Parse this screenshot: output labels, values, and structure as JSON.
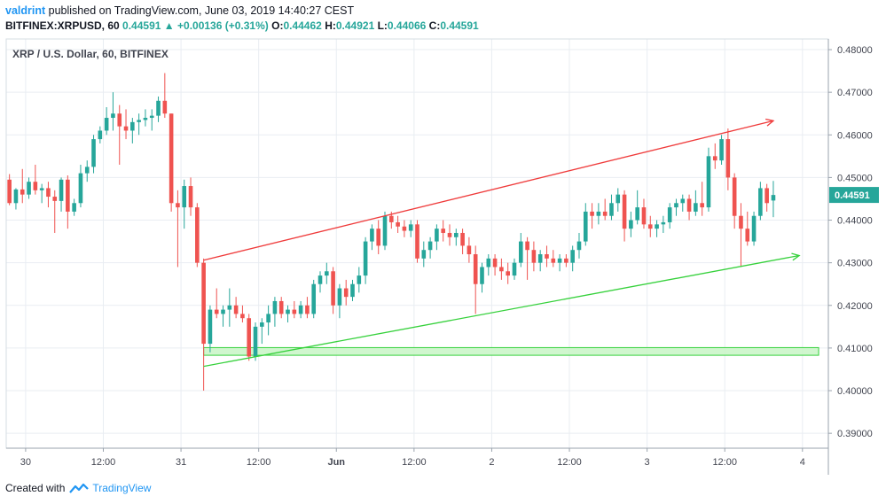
{
  "header": {
    "author": "valdrint",
    "published_text": "published on TradingView.com, June 03, 2019 14:40:27 CEST",
    "symbol_interval": "BITFINEX:XRPUSD, 60",
    "last": "0.44591",
    "change": "+0.00136 (+0.31%)",
    "o_label": "O:",
    "o": "0.44462",
    "h_label": "H:",
    "h": "0.44921",
    "l_label": "L:",
    "l": "0.44066",
    "c_label": "C:",
    "c": "0.44591"
  },
  "footer": {
    "created_with": "Created with",
    "brand": "TradingView"
  },
  "colors": {
    "up": "#26a69a",
    "down": "#ef5350",
    "grid": "#e9edf2",
    "resistance": "#ef3b3b",
    "support": "#36d13c",
    "zone_fill": "#c8f5c5",
    "zone_stroke": "#36d13c",
    "price_badge": "#26a69a"
  },
  "chart_data": {
    "type": "candlestick",
    "title": "XRP / U.S. Dollar, 60, BITFINEX",
    "ylim": [
      0.3865,
      0.4825
    ],
    "y_ticks": [
      "0.48000",
      "0.47000",
      "0.46000",
      "0.45000",
      "0.44000",
      "0.43000",
      "0.42000",
      "0.41000",
      "0.40000",
      "0.39000"
    ],
    "y_tick_values": [
      0.48,
      0.47,
      0.46,
      0.45,
      0.44,
      0.43,
      0.42,
      0.41,
      0.4,
      0.39
    ],
    "x_ticks": [
      "30",
      "12:00",
      "31",
      "12:00",
      "Jun",
      "12:00",
      "2",
      "12:00",
      "3",
      "12:00",
      "4"
    ],
    "x_tick_hours": [
      0,
      12,
      24,
      36,
      48,
      60,
      72,
      84,
      96,
      108,
      120
    ],
    "x_start_hour": -3,
    "x_end_hour": 124,
    "current_price_label": "0.44591",
    "current_price": 0.44591,
    "candles": [
      {
        "t": -2.5,
        "o": 0.4495,
        "h": 0.4508,
        "l": 0.4435,
        "c": 0.444
      },
      {
        "t": -1.5,
        "o": 0.444,
        "h": 0.4475,
        "l": 0.4425,
        "c": 0.4472
      },
      {
        "t": -0.5,
        "o": 0.4472,
        "h": 0.452,
        "l": 0.444,
        "c": 0.446
      },
      {
        "t": 0.5,
        "o": 0.446,
        "h": 0.45,
        "l": 0.445,
        "c": 0.449
      },
      {
        "t": 1.5,
        "o": 0.449,
        "h": 0.453,
        "l": 0.446,
        "c": 0.447
      },
      {
        "t": 2.5,
        "o": 0.447,
        "h": 0.4485,
        "l": 0.444,
        "c": 0.4475
      },
      {
        "t": 3.5,
        "o": 0.4475,
        "h": 0.449,
        "l": 0.443,
        "c": 0.4455
      },
      {
        "t": 4.5,
        "o": 0.4455,
        "h": 0.447,
        "l": 0.437,
        "c": 0.4445
      },
      {
        "t": 5.5,
        "o": 0.4445,
        "h": 0.45,
        "l": 0.442,
        "c": 0.4495
      },
      {
        "t": 6.5,
        "o": 0.4495,
        "h": 0.4505,
        "l": 0.438,
        "c": 0.442
      },
      {
        "t": 7.5,
        "o": 0.442,
        "h": 0.445,
        "l": 0.441,
        "c": 0.444
      },
      {
        "t": 8.5,
        "o": 0.444,
        "h": 0.453,
        "l": 0.443,
        "c": 0.451
      },
      {
        "t": 9.5,
        "o": 0.451,
        "h": 0.454,
        "l": 0.449,
        "c": 0.4525
      },
      {
        "t": 10.5,
        "o": 0.4525,
        "h": 0.46,
        "l": 0.451,
        "c": 0.459
      },
      {
        "t": 11.5,
        "o": 0.459,
        "h": 0.462,
        "l": 0.458,
        "c": 0.461
      },
      {
        "t": 12.5,
        "o": 0.461,
        "h": 0.4665,
        "l": 0.46,
        "c": 0.464
      },
      {
        "t": 13.5,
        "o": 0.464,
        "h": 0.47,
        "l": 0.461,
        "c": 0.465
      },
      {
        "t": 14.5,
        "o": 0.465,
        "h": 0.467,
        "l": 0.453,
        "c": 0.462
      },
      {
        "t": 15.5,
        "o": 0.462,
        "h": 0.466,
        "l": 0.459,
        "c": 0.461
      },
      {
        "t": 16.5,
        "o": 0.461,
        "h": 0.464,
        "l": 0.458,
        "c": 0.463
      },
      {
        "t": 17.5,
        "o": 0.463,
        "h": 0.465,
        "l": 0.46,
        "c": 0.4635
      },
      {
        "t": 18.5,
        "o": 0.4635,
        "h": 0.466,
        "l": 0.462,
        "c": 0.464
      },
      {
        "t": 19.5,
        "o": 0.464,
        "h": 0.466,
        "l": 0.461,
        "c": 0.4645
      },
      {
        "t": 20.5,
        "o": 0.4645,
        "h": 0.469,
        "l": 0.463,
        "c": 0.468
      },
      {
        "t": 21.5,
        "o": 0.468,
        "h": 0.4745,
        "l": 0.464,
        "c": 0.465
      },
      {
        "t": 22.5,
        "o": 0.465,
        "h": 0.465,
        "l": 0.442,
        "c": 0.444
      },
      {
        "t": 23.5,
        "o": 0.444,
        "h": 0.447,
        "l": 0.429,
        "c": 0.443
      },
      {
        "t": 24.5,
        "o": 0.443,
        "h": 0.4495,
        "l": 0.438,
        "c": 0.448
      },
      {
        "t": 25.5,
        "o": 0.448,
        "h": 0.45,
        "l": 0.441,
        "c": 0.443
      },
      {
        "t": 26.5,
        "o": 0.443,
        "h": 0.444,
        "l": 0.429,
        "c": 0.43
      },
      {
        "t": 27.5,
        "o": 0.43,
        "h": 0.431,
        "l": 0.4,
        "c": 0.411
      },
      {
        "t": 28.5,
        "o": 0.411,
        "h": 0.42,
        "l": 0.409,
        "c": 0.419
      },
      {
        "t": 29.5,
        "o": 0.419,
        "h": 0.424,
        "l": 0.417,
        "c": 0.418
      },
      {
        "t": 30.5,
        "o": 0.418,
        "h": 0.42,
        "l": 0.415,
        "c": 0.419
      },
      {
        "t": 31.5,
        "o": 0.419,
        "h": 0.424,
        "l": 0.415,
        "c": 0.42
      },
      {
        "t": 32.5,
        "o": 0.42,
        "h": 0.422,
        "l": 0.417,
        "c": 0.418
      },
      {
        "t": 33.5,
        "o": 0.418,
        "h": 0.42,
        "l": 0.416,
        "c": 0.417
      },
      {
        "t": 34.5,
        "o": 0.417,
        "h": 0.418,
        "l": 0.407,
        "c": 0.408
      },
      {
        "t": 35.5,
        "o": 0.408,
        "h": 0.416,
        "l": 0.407,
        "c": 0.415
      },
      {
        "t": 36.5,
        "o": 0.415,
        "h": 0.417,
        "l": 0.411,
        "c": 0.416
      },
      {
        "t": 37.5,
        "o": 0.416,
        "h": 0.42,
        "l": 0.413,
        "c": 0.418
      },
      {
        "t": 38.5,
        "o": 0.418,
        "h": 0.422,
        "l": 0.415,
        "c": 0.421
      },
      {
        "t": 39.5,
        "o": 0.421,
        "h": 0.422,
        "l": 0.417,
        "c": 0.418
      },
      {
        "t": 40.5,
        "o": 0.418,
        "h": 0.42,
        "l": 0.416,
        "c": 0.419
      },
      {
        "t": 41.5,
        "o": 0.419,
        "h": 0.421,
        "l": 0.417,
        "c": 0.418
      },
      {
        "t": 42.5,
        "o": 0.418,
        "h": 0.421,
        "l": 0.417,
        "c": 0.42
      },
      {
        "t": 43.5,
        "o": 0.42,
        "h": 0.422,
        "l": 0.417,
        "c": 0.418
      },
      {
        "t": 44.5,
        "o": 0.418,
        "h": 0.426,
        "l": 0.417,
        "c": 0.425
      },
      {
        "t": 45.5,
        "o": 0.425,
        "h": 0.428,
        "l": 0.423,
        "c": 0.427
      },
      {
        "t": 46.5,
        "o": 0.427,
        "h": 0.43,
        "l": 0.425,
        "c": 0.428
      },
      {
        "t": 47.5,
        "o": 0.428,
        "h": 0.429,
        "l": 0.418,
        "c": 0.42
      },
      {
        "t": 48.5,
        "o": 0.42,
        "h": 0.425,
        "l": 0.417,
        "c": 0.424
      },
      {
        "t": 49.5,
        "o": 0.424,
        "h": 0.426,
        "l": 0.42,
        "c": 0.422
      },
      {
        "t": 50.5,
        "o": 0.422,
        "h": 0.426,
        "l": 0.421,
        "c": 0.425
      },
      {
        "t": 51.5,
        "o": 0.425,
        "h": 0.429,
        "l": 0.423,
        "c": 0.427
      },
      {
        "t": 52.5,
        "o": 0.427,
        "h": 0.436,
        "l": 0.425,
        "c": 0.435
      },
      {
        "t": 53.5,
        "o": 0.435,
        "h": 0.439,
        "l": 0.433,
        "c": 0.438
      },
      {
        "t": 54.5,
        "o": 0.438,
        "h": 0.44,
        "l": 0.432,
        "c": 0.434
      },
      {
        "t": 55.5,
        "o": 0.434,
        "h": 0.442,
        "l": 0.433,
        "c": 0.441
      },
      {
        "t": 56.5,
        "o": 0.441,
        "h": 0.442,
        "l": 0.438,
        "c": 0.4395
      },
      {
        "t": 57.5,
        "o": 0.4395,
        "h": 0.441,
        "l": 0.437,
        "c": 0.4385
      },
      {
        "t": 58.5,
        "o": 0.4385,
        "h": 0.44,
        "l": 0.436,
        "c": 0.4375
      },
      {
        "t": 59.5,
        "o": 0.4375,
        "h": 0.44,
        "l": 0.436,
        "c": 0.439
      },
      {
        "t": 60.5,
        "o": 0.439,
        "h": 0.44,
        "l": 0.43,
        "c": 0.431
      },
      {
        "t": 61.5,
        "o": 0.431,
        "h": 0.435,
        "l": 0.429,
        "c": 0.433
      },
      {
        "t": 62.5,
        "o": 0.433,
        "h": 0.436,
        "l": 0.431,
        "c": 0.435
      },
      {
        "t": 63.5,
        "o": 0.435,
        "h": 0.439,
        "l": 0.433,
        "c": 0.438
      },
      {
        "t": 64.5,
        "o": 0.438,
        "h": 0.44,
        "l": 0.435,
        "c": 0.437
      },
      {
        "t": 65.5,
        "o": 0.437,
        "h": 0.439,
        "l": 0.434,
        "c": 0.436
      },
      {
        "t": 66.5,
        "o": 0.436,
        "h": 0.438,
        "l": 0.434,
        "c": 0.437
      },
      {
        "t": 67.5,
        "o": 0.437,
        "h": 0.438,
        "l": 0.432,
        "c": 0.434
      },
      {
        "t": 68.5,
        "o": 0.434,
        "h": 0.436,
        "l": 0.43,
        "c": 0.432
      },
      {
        "t": 69.5,
        "o": 0.432,
        "h": 0.434,
        "l": 0.418,
        "c": 0.425
      },
      {
        "t": 70.5,
        "o": 0.425,
        "h": 0.43,
        "l": 0.423,
        "c": 0.429
      },
      {
        "t": 71.5,
        "o": 0.429,
        "h": 0.432,
        "l": 0.427,
        "c": 0.431
      },
      {
        "t": 72.5,
        "o": 0.431,
        "h": 0.432,
        "l": 0.427,
        "c": 0.429
      },
      {
        "t": 73.5,
        "o": 0.429,
        "h": 0.431,
        "l": 0.426,
        "c": 0.428
      },
      {
        "t": 74.5,
        "o": 0.428,
        "h": 0.43,
        "l": 0.425,
        "c": 0.427
      },
      {
        "t": 75.5,
        "o": 0.427,
        "h": 0.431,
        "l": 0.426,
        "c": 0.43
      },
      {
        "t": 76.5,
        "o": 0.43,
        "h": 0.437,
        "l": 0.429,
        "c": 0.435
      },
      {
        "t": 77.5,
        "o": 0.435,
        "h": 0.436,
        "l": 0.426,
        "c": 0.433
      },
      {
        "t": 78.5,
        "o": 0.433,
        "h": 0.435,
        "l": 0.428,
        "c": 0.43
      },
      {
        "t": 79.5,
        "o": 0.43,
        "h": 0.433,
        "l": 0.428,
        "c": 0.432
      },
      {
        "t": 80.5,
        "o": 0.432,
        "h": 0.434,
        "l": 0.429,
        "c": 0.431
      },
      {
        "t": 81.5,
        "o": 0.431,
        "h": 0.433,
        "l": 0.429,
        "c": 0.43
      },
      {
        "t": 82.5,
        "o": 0.43,
        "h": 0.432,
        "l": 0.428,
        "c": 0.431
      },
      {
        "t": 83.5,
        "o": 0.431,
        "h": 0.432,
        "l": 0.429,
        "c": 0.43
      },
      {
        "t": 84.5,
        "o": 0.43,
        "h": 0.434,
        "l": 0.428,
        "c": 0.433
      },
      {
        "t": 85.5,
        "o": 0.433,
        "h": 0.437,
        "l": 0.431,
        "c": 0.435
      },
      {
        "t": 86.5,
        "o": 0.435,
        "h": 0.444,
        "l": 0.434,
        "c": 0.442
      },
      {
        "t": 87.5,
        "o": 0.442,
        "h": 0.444,
        "l": 0.438,
        "c": 0.441
      },
      {
        "t": 88.5,
        "o": 0.441,
        "h": 0.444,
        "l": 0.439,
        "c": 0.442
      },
      {
        "t": 89.5,
        "o": 0.442,
        "h": 0.445,
        "l": 0.44,
        "c": 0.441
      },
      {
        "t": 90.5,
        "o": 0.441,
        "h": 0.446,
        "l": 0.44,
        "c": 0.444
      },
      {
        "t": 91.5,
        "o": 0.444,
        "h": 0.4475,
        "l": 0.442,
        "c": 0.446
      },
      {
        "t": 92.5,
        "o": 0.446,
        "h": 0.447,
        "l": 0.435,
        "c": 0.438
      },
      {
        "t": 93.5,
        "o": 0.438,
        "h": 0.442,
        "l": 0.436,
        "c": 0.44
      },
      {
        "t": 94.5,
        "o": 0.44,
        "h": 0.447,
        "l": 0.439,
        "c": 0.443
      },
      {
        "t": 95.5,
        "o": 0.443,
        "h": 0.445,
        "l": 0.438,
        "c": 0.439
      },
      {
        "t": 96.5,
        "o": 0.439,
        "h": 0.441,
        "l": 0.436,
        "c": 0.438
      },
      {
        "t": 97.5,
        "o": 0.438,
        "h": 0.44,
        "l": 0.436,
        "c": 0.439
      },
      {
        "t": 98.5,
        "o": 0.439,
        "h": 0.441,
        "l": 0.437,
        "c": 0.4395
      },
      {
        "t": 99.5,
        "o": 0.4395,
        "h": 0.444,
        "l": 0.438,
        "c": 0.443
      },
      {
        "t": 100.5,
        "o": 0.443,
        "h": 0.445,
        "l": 0.441,
        "c": 0.444
      },
      {
        "t": 101.5,
        "o": 0.444,
        "h": 0.446,
        "l": 0.442,
        "c": 0.445
      },
      {
        "t": 102.5,
        "o": 0.445,
        "h": 0.446,
        "l": 0.44,
        "c": 0.442
      },
      {
        "t": 103.5,
        "o": 0.442,
        "h": 0.447,
        "l": 0.441,
        "c": 0.444
      },
      {
        "t": 104.5,
        "o": 0.444,
        "h": 0.449,
        "l": 0.441,
        "c": 0.443
      },
      {
        "t": 105.5,
        "o": 0.443,
        "h": 0.457,
        "l": 0.442,
        "c": 0.455
      },
      {
        "t": 106.5,
        "o": 0.455,
        "h": 0.458,
        "l": 0.452,
        "c": 0.454
      },
      {
        "t": 107.5,
        "o": 0.454,
        "h": 0.46,
        "l": 0.453,
        "c": 0.459
      },
      {
        "t": 108.5,
        "o": 0.459,
        "h": 0.4615,
        "l": 0.447,
        "c": 0.45
      },
      {
        "t": 109.5,
        "o": 0.45,
        "h": 0.451,
        "l": 0.438,
        "c": 0.441
      },
      {
        "t": 110.5,
        "o": 0.441,
        "h": 0.444,
        "l": 0.429,
        "c": 0.438
      },
      {
        "t": 111.5,
        "o": 0.438,
        "h": 0.442,
        "l": 0.434,
        "c": 0.435
      },
      {
        "t": 112.5,
        "o": 0.435,
        "h": 0.442,
        "l": 0.434,
        "c": 0.441
      },
      {
        "t": 113.5,
        "o": 0.441,
        "h": 0.449,
        "l": 0.44,
        "c": 0.4475
      },
      {
        "t": 114.5,
        "o": 0.4475,
        "h": 0.4485,
        "l": 0.442,
        "c": 0.444
      },
      {
        "t": 115.5,
        "o": 0.4446,
        "h": 0.4492,
        "l": 0.4407,
        "c": 0.4459
      }
    ],
    "annotations": [
      {
        "type": "arrow_line",
        "label": "resistance",
        "color": "#ef3b3b",
        "from": {
          "t": 27.5,
          "p": 0.4306
        },
        "to": {
          "t": 115.5,
          "p": 0.4633
        }
      },
      {
        "type": "arrow_line",
        "label": "support",
        "color": "#36d13c",
        "from": {
          "t": 27.5,
          "p": 0.4057
        },
        "to": {
          "t": 119.5,
          "p": 0.4317
        }
      },
      {
        "type": "zone",
        "label": "support-zone",
        "color": "#36d13c",
        "t0": 27.5,
        "t1": 122.5,
        "p0": 0.4101,
        "p1": 0.4083
      }
    ]
  }
}
